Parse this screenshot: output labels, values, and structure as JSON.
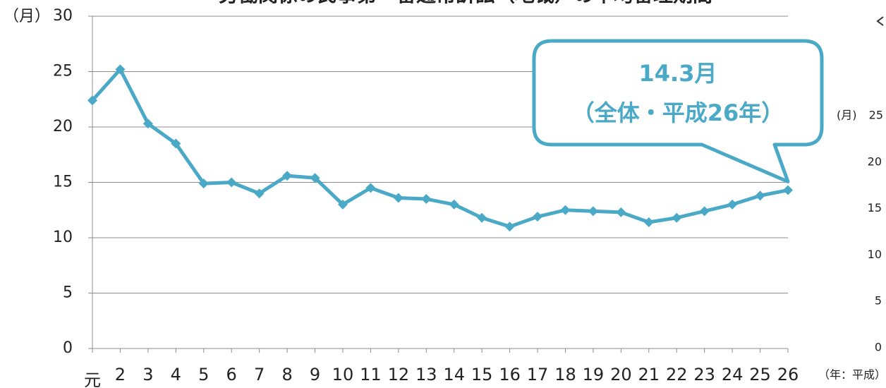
{
  "chart_data": [
    {
      "type": "line",
      "title": "労働関係の民事第一審通常訴訟（地裁）の平均審理期間",
      "ylabel": "（月）",
      "xlabel": "（年：平成）",
      "categories": [
        "元",
        "2",
        "3",
        "4",
        "5",
        "6",
        "7",
        "8",
        "9",
        "10",
        "11",
        "12",
        "13",
        "14",
        "15",
        "16",
        "17",
        "18",
        "19",
        "20",
        "21",
        "22",
        "23",
        "24",
        "25",
        "26"
      ],
      "series": [
        {
          "name": "全体",
          "color": "#4aa9c7",
          "values": [
            22.4,
            25.2,
            20.3,
            18.5,
            14.9,
            15.0,
            14.0,
            15.6,
            15.4,
            13.0,
            14.5,
            13.6,
            13.5,
            13.0,
            11.8,
            11.0,
            11.9,
            12.5,
            12.4,
            12.3,
            11.4,
            11.8,
            12.4,
            13.0,
            13.8,
            14.3
          ]
        }
      ],
      "ylim": [
        0,
        30
      ],
      "yticks": [
        0,
        5,
        10,
        15,
        20,
        25,
        30
      ],
      "grid": true,
      "annotation": {
        "lines": [
          "14.3月",
          "（全体・平成26年）"
        ]
      }
    },
    {
      "type": "line",
      "ylabel": "(月)",
      "ylim": [
        0,
        25
      ],
      "yticks": [
        0,
        5,
        10,
        15,
        20,
        25
      ]
    }
  ]
}
